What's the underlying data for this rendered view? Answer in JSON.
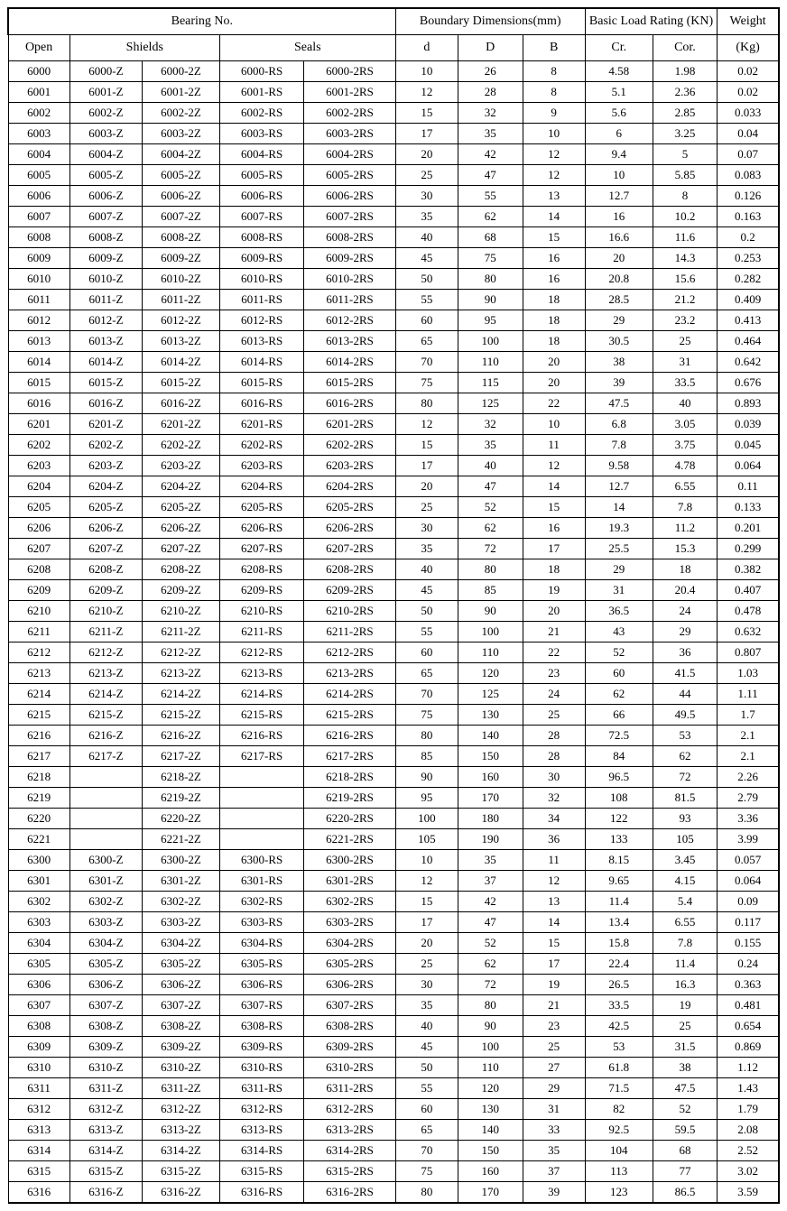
{
  "header": {
    "bearing_no": "Bearing No.",
    "boundary": "Boundary Dimensions(mm)",
    "load": "Basic Load Rating (KN)",
    "weight": "Weight",
    "open": "Open",
    "shields": "Shields",
    "seals": "Seals",
    "d": "d",
    "D": "D",
    "B": "B",
    "cr": "Cr.",
    "cor": "Cor.",
    "kg": "(Kg)"
  },
  "rows": [
    [
      "6000",
      "6000-Z",
      "6000-2Z",
      "6000-RS",
      "6000-2RS",
      "10",
      "26",
      "8",
      "4.58",
      "1.98",
      "0.02"
    ],
    [
      "6001",
      "6001-Z",
      "6001-2Z",
      "6001-RS",
      "6001-2RS",
      "12",
      "28",
      "8",
      "5.1",
      "2.36",
      "0.02"
    ],
    [
      "6002",
      "6002-Z",
      "6002-2Z",
      "6002-RS",
      "6002-2RS",
      "15",
      "32",
      "9",
      "5.6",
      "2.85",
      "0.033"
    ],
    [
      "6003",
      "6003-Z",
      "6003-2Z",
      "6003-RS",
      "6003-2RS",
      "17",
      "35",
      "10",
      "6",
      "3.25",
      "0.04"
    ],
    [
      "6004",
      "6004-Z",
      "6004-2Z",
      "6004-RS",
      "6004-2RS",
      "20",
      "42",
      "12",
      "9.4",
      "5",
      "0.07"
    ],
    [
      "6005",
      "6005-Z",
      "6005-2Z",
      "6005-RS",
      "6005-2RS",
      "25",
      "47",
      "12",
      "10",
      "5.85",
      "0.083"
    ],
    [
      "6006",
      "6006-Z",
      "6006-2Z",
      "6006-RS",
      "6006-2RS",
      "30",
      "55",
      "13",
      "12.7",
      "8",
      "0.126"
    ],
    [
      "6007",
      "6007-Z",
      "6007-2Z",
      "6007-RS",
      "6007-2RS",
      "35",
      "62",
      "14",
      "16",
      "10.2",
      "0.163"
    ],
    [
      "6008",
      "6008-Z",
      "6008-2Z",
      "6008-RS",
      "6008-2RS",
      "40",
      "68",
      "15",
      "16.6",
      "11.6",
      "0.2"
    ],
    [
      "6009",
      "6009-Z",
      "6009-2Z",
      "6009-RS",
      "6009-2RS",
      "45",
      "75",
      "16",
      "20",
      "14.3",
      "0.253"
    ],
    [
      "6010",
      "6010-Z",
      "6010-2Z",
      "6010-RS",
      "6010-2RS",
      "50",
      "80",
      "16",
      "20.8",
      "15.6",
      "0.282"
    ],
    [
      "6011",
      "6011-Z",
      "6011-2Z",
      "6011-RS",
      "6011-2RS",
      "55",
      "90",
      "18",
      "28.5",
      "21.2",
      "0.409"
    ],
    [
      "6012",
      "6012-Z",
      "6012-2Z",
      "6012-RS",
      "6012-2RS",
      "60",
      "95",
      "18",
      "29",
      "23.2",
      "0.413"
    ],
    [
      "6013",
      "6013-Z",
      "6013-2Z",
      "6013-RS",
      "6013-2RS",
      "65",
      "100",
      "18",
      "30.5",
      "25",
      "0.464"
    ],
    [
      "6014",
      "6014-Z",
      "6014-2Z",
      "6014-RS",
      "6014-2RS",
      "70",
      "110",
      "20",
      "38",
      "31",
      "0.642"
    ],
    [
      "6015",
      "6015-Z",
      "6015-2Z",
      "6015-RS",
      "6015-2RS",
      "75",
      "115",
      "20",
      "39",
      "33.5",
      "0.676"
    ],
    [
      "6016",
      "6016-Z",
      "6016-2Z",
      "6016-RS",
      "6016-2RS",
      "80",
      "125",
      "22",
      "47.5",
      "40",
      "0.893"
    ],
    [
      "6201",
      "6201-Z",
      "6201-2Z",
      "6201-RS",
      "6201-2RS",
      "12",
      "32",
      "10",
      "6.8",
      "3.05",
      "0.039"
    ],
    [
      "6202",
      "6202-Z",
      "6202-2Z",
      "6202-RS",
      "6202-2RS",
      "15",
      "35",
      "11",
      "7.8",
      "3.75",
      "0.045"
    ],
    [
      "6203",
      "6203-Z",
      "6203-2Z",
      "6203-RS",
      "6203-2RS",
      "17",
      "40",
      "12",
      "9.58",
      "4.78",
      "0.064"
    ],
    [
      "6204",
      "6204-Z",
      "6204-2Z",
      "6204-RS",
      "6204-2RS",
      "20",
      "47",
      "14",
      "12.7",
      "6.55",
      "0.11"
    ],
    [
      "6205",
      "6205-Z",
      "6205-2Z",
      "6205-RS",
      "6205-2RS",
      "25",
      "52",
      "15",
      "14",
      "7.8",
      "0.133"
    ],
    [
      "6206",
      "6206-Z",
      "6206-2Z",
      "6206-RS",
      "6206-2RS",
      "30",
      "62",
      "16",
      "19.3",
      "11.2",
      "0.201"
    ],
    [
      "6207",
      "6207-Z",
      "6207-2Z",
      "6207-RS",
      "6207-2RS",
      "35",
      "72",
      "17",
      "25.5",
      "15.3",
      "0.299"
    ],
    [
      "6208",
      "6208-Z",
      "6208-2Z",
      "6208-RS",
      "6208-2RS",
      "40",
      "80",
      "18",
      "29",
      "18",
      "0.382"
    ],
    [
      "6209",
      "6209-Z",
      "6209-2Z",
      "6209-RS",
      "6209-2RS",
      "45",
      "85",
      "19",
      "31",
      "20.4",
      "0.407"
    ],
    [
      "6210",
      "6210-Z",
      "6210-2Z",
      "6210-RS",
      "6210-2RS",
      "50",
      "90",
      "20",
      "36.5",
      "24",
      "0.478"
    ],
    [
      "6211",
      "6211-Z",
      "6211-2Z",
      "6211-RS",
      "6211-2RS",
      "55",
      "100",
      "21",
      "43",
      "29",
      "0.632"
    ],
    [
      "6212",
      "6212-Z",
      "6212-2Z",
      "6212-RS",
      "6212-2RS",
      "60",
      "110",
      "22",
      "52",
      "36",
      "0.807"
    ],
    [
      "6213",
      "6213-Z",
      "6213-2Z",
      "6213-RS",
      "6213-2RS",
      "65",
      "120",
      "23",
      "60",
      "41.5",
      "1.03"
    ],
    [
      "6214",
      "6214-Z",
      "6214-2Z",
      "6214-RS",
      "6214-2RS",
      "70",
      "125",
      "24",
      "62",
      "44",
      "1.11"
    ],
    [
      "6215",
      "6215-Z",
      "6215-2Z",
      "6215-RS",
      "6215-2RS",
      "75",
      "130",
      "25",
      "66",
      "49.5",
      "1.7"
    ],
    [
      "6216",
      "6216-Z",
      "6216-2Z",
      "6216-RS",
      "6216-2RS",
      "80",
      "140",
      "28",
      "72.5",
      "53",
      "2.1"
    ],
    [
      "6217",
      "6217-Z",
      "6217-2Z",
      "6217-RS",
      "6217-2RS",
      "85",
      "150",
      "28",
      "84",
      "62",
      "2.1"
    ],
    [
      "6218",
      "",
      "6218-2Z",
      "",
      "6218-2RS",
      "90",
      "160",
      "30",
      "96.5",
      "72",
      "2.26"
    ],
    [
      "6219",
      "",
      "6219-2Z",
      "",
      "6219-2RS",
      "95",
      "170",
      "32",
      "108",
      "81.5",
      "2.79"
    ],
    [
      "6220",
      "",
      "6220-2Z",
      "",
      "6220-2RS",
      "100",
      "180",
      "34",
      "122",
      "93",
      "3.36"
    ],
    [
      "6221",
      "",
      "6221-2Z",
      "",
      "6221-2RS",
      "105",
      "190",
      "36",
      "133",
      "105",
      "3.99"
    ],
    [
      "6300",
      "6300-Z",
      "6300-2Z",
      "6300-RS",
      "6300-2RS",
      "10",
      "35",
      "11",
      "8.15",
      "3.45",
      "0.057"
    ],
    [
      "6301",
      "6301-Z",
      "6301-2Z",
      "6301-RS",
      "6301-2RS",
      "12",
      "37",
      "12",
      "9.65",
      "4.15",
      "0.064"
    ],
    [
      "6302",
      "6302-Z",
      "6302-2Z",
      "6302-RS",
      "6302-2RS",
      "15",
      "42",
      "13",
      "11.4",
      "5.4",
      "0.09"
    ],
    [
      "6303",
      "6303-Z",
      "6303-2Z",
      "6303-RS",
      "6303-2RS",
      "17",
      "47",
      "14",
      "13.4",
      "6.55",
      "0.117"
    ],
    [
      "6304",
      "6304-Z",
      "6304-2Z",
      "6304-RS",
      "6304-2RS",
      "20",
      "52",
      "15",
      "15.8",
      "7.8",
      "0.155"
    ],
    [
      "6305",
      "6305-Z",
      "6305-2Z",
      "6305-RS",
      "6305-2RS",
      "25",
      "62",
      "17",
      "22.4",
      "11.4",
      "0.24"
    ],
    [
      "6306",
      "6306-Z",
      "6306-2Z",
      "6306-RS",
      "6306-2RS",
      "30",
      "72",
      "19",
      "26.5",
      "16.3",
      "0.363"
    ],
    [
      "6307",
      "6307-Z",
      "6307-2Z",
      "6307-RS",
      "6307-2RS",
      "35",
      "80",
      "21",
      "33.5",
      "19",
      "0.481"
    ],
    [
      "6308",
      "6308-Z",
      "6308-2Z",
      "6308-RS",
      "6308-2RS",
      "40",
      "90",
      "23",
      "42.5",
      "25",
      "0.654"
    ],
    [
      "6309",
      "6309-Z",
      "6309-2Z",
      "6309-RS",
      "6309-2RS",
      "45",
      "100",
      "25",
      "53",
      "31.5",
      "0.869"
    ],
    [
      "6310",
      "6310-Z",
      "6310-2Z",
      "6310-RS",
      "6310-2RS",
      "50",
      "110",
      "27",
      "61.8",
      "38",
      "1.12"
    ],
    [
      "6311",
      "6311-Z",
      "6311-2Z",
      "6311-RS",
      "6311-2RS",
      "55",
      "120",
      "29",
      "71.5",
      "47.5",
      "1.43"
    ],
    [
      "6312",
      "6312-Z",
      "6312-2Z",
      "6312-RS",
      "6312-2RS",
      "60",
      "130",
      "31",
      "82",
      "52",
      "1.79"
    ],
    [
      "6313",
      "6313-Z",
      "6313-2Z",
      "6313-RS",
      "6313-2RS",
      "65",
      "140",
      "33",
      "92.5",
      "59.5",
      "2.08"
    ],
    [
      "6314",
      "6314-Z",
      "6314-2Z",
      "6314-RS",
      "6314-2RS",
      "70",
      "150",
      "35",
      "104",
      "68",
      "2.52"
    ],
    [
      "6315",
      "6315-Z",
      "6315-2Z",
      "6315-RS",
      "6315-2RS",
      "75",
      "160",
      "37",
      "113",
      "77",
      "3.02"
    ],
    [
      "6316",
      "6316-Z",
      "6316-2Z",
      "6316-RS",
      "6316-2RS",
      "80",
      "170",
      "39",
      "123",
      "86.5",
      "3.59"
    ]
  ]
}
